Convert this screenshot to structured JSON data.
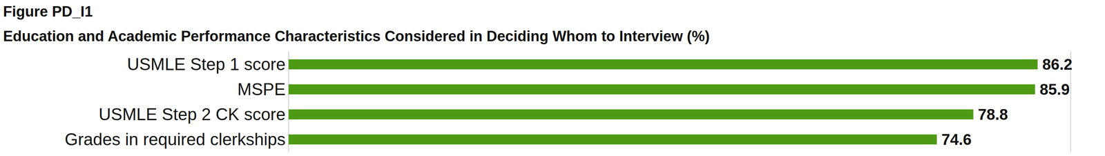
{
  "chart_data": {
    "type": "bar",
    "title": "Figure PD_I1",
    "subtitle": "Education and Academic Performance Characteristics Considered in Deciding Whom to Interview (%)",
    "orientation": "horizontal",
    "categories": [
      "USMLE Step 1 score",
      "MSPE",
      "USMLE Step 2 CK score",
      "Grades in required clerkships"
    ],
    "values": [
      86.2,
      85.9,
      78.8,
      74.6
    ],
    "color": "#4e9a15",
    "xlim": [
      0,
      90
    ],
    "xticks": [
      0,
      10,
      20,
      30,
      40,
      50,
      60,
      70,
      80,
      90
    ],
    "grid": true,
    "data_labels": true,
    "tick_labels": false
  }
}
